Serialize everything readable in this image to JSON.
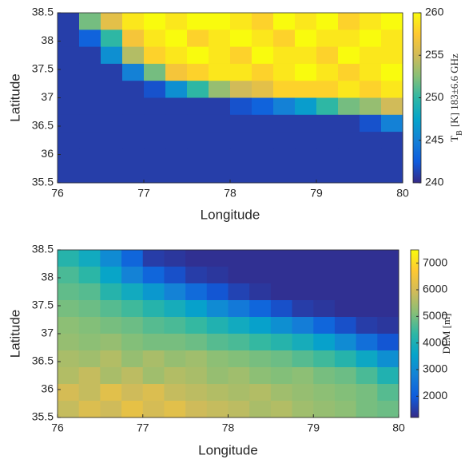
{
  "chart_data": [
    {
      "type": "heatmap",
      "colormap": "parula",
      "xlabel": "Longitude",
      "ylabel": "Latitude",
      "colorbar_label": "T",
      "colorbar_label_subscript": "B",
      "colorbar_label_rest": "[K] 183±6.6 GHz",
      "xlim": [
        76,
        80
      ],
      "xticks": [
        76,
        77,
        78,
        79,
        80
      ],
      "ylim": [
        35.5,
        38.5
      ],
      "yticks": [
        35.5,
        36,
        36.5,
        37,
        37.5,
        38,
        38.5
      ],
      "clim": [
        240,
        260
      ],
      "cticks": [
        240,
        245,
        250,
        255,
        260
      ],
      "values": [
        [
          241,
          252,
          256,
          259,
          260,
          259,
          260,
          260,
          259,
          258,
          260,
          259,
          260,
          258,
          259,
          260
        ],
        [
          241,
          243,
          250,
          257,
          259,
          260,
          258,
          259,
          260,
          259,
          258,
          260,
          259,
          259,
          260,
          259
        ],
        [
          241,
          241,
          246,
          254,
          258,
          259,
          260,
          259,
          258,
          260,
          259,
          259,
          258,
          260,
          259,
          259
        ],
        [
          241,
          241,
          241,
          245,
          252,
          257,
          258,
          259,
          259,
          258,
          259,
          260,
          259,
          258,
          259,
          260
        ],
        [
          241,
          241,
          241,
          241,
          242,
          246,
          250,
          253,
          255,
          256,
          258,
          258,
          258,
          259,
          258,
          259
        ],
        [
          241,
          241,
          241,
          241,
          241,
          241,
          241,
          241,
          242,
          243,
          245,
          247,
          250,
          252,
          253,
          255
        ],
        [
          241,
          241,
          241,
          241,
          241,
          241,
          241,
          241,
          241,
          241,
          241,
          241,
          241,
          241,
          242,
          245
        ],
        [
          241,
          241,
          241,
          241,
          241,
          241,
          241,
          241,
          241,
          241,
          241,
          241,
          241,
          241,
          241,
          241
        ],
        [
          241,
          241,
          241,
          241,
          241,
          241,
          241,
          241,
          241,
          241,
          241,
          241,
          241,
          241,
          241,
          241
        ],
        [
          241,
          241,
          241,
          241,
          241,
          241,
          241,
          241,
          241,
          241,
          241,
          241,
          241,
          241,
          241,
          241
        ]
      ]
    },
    {
      "type": "heatmap",
      "colormap": "parula",
      "xlabel": "Longitude",
      "ylabel": "Latitude",
      "colorbar_label": "DEM [m]",
      "xlim": [
        76,
        80
      ],
      "xticks": [
        76,
        77,
        78,
        79,
        80
      ],
      "ylim": [
        35.5,
        38.5
      ],
      "yticks": [
        35.5,
        36,
        36.5,
        37,
        37.5,
        38,
        38.5
      ],
      "clim": [
        1200,
        7500
      ],
      "cticks": [
        2000,
        3000,
        4000,
        5000,
        6000,
        7000
      ],
      "values": [
        [
          4200,
          3800,
          3000,
          2200,
          1500,
          1400,
          1300,
          1300,
          1300,
          1300,
          1300,
          1300,
          1300,
          1300,
          1300,
          1300
        ],
        [
          4600,
          4300,
          3600,
          2800,
          2200,
          1800,
          1500,
          1400,
          1300,
          1300,
          1300,
          1300,
          1300,
          1300,
          1300,
          1300
        ],
        [
          4800,
          4700,
          4200,
          3800,
          3300,
          2800,
          2300,
          1900,
          1600,
          1400,
          1300,
          1300,
          1300,
          1300,
          1300,
          1300
        ],
        [
          5000,
          4900,
          4700,
          4500,
          4200,
          3900,
          3500,
          3000,
          2600,
          2200,
          1800,
          1500,
          1400,
          1300,
          1300,
          1300
        ],
        [
          5200,
          5100,
          5000,
          4900,
          4700,
          4600,
          4400,
          4100,
          3800,
          3500,
          3100,
          2700,
          2200,
          1800,
          1500,
          1400
        ],
        [
          5300,
          5200,
          5300,
          5100,
          5000,
          5000,
          4900,
          4700,
          4600,
          4400,
          4200,
          3900,
          3500,
          3000,
          2400,
          1900
        ],
        [
          5500,
          5400,
          5600,
          5300,
          5500,
          5300,
          5400,
          5200,
          5100,
          5000,
          4900,
          4700,
          4500,
          4200,
          3700,
          3100
        ],
        [
          5600,
          5800,
          5500,
          5700,
          5400,
          5600,
          5500,
          5300,
          5400,
          5200,
          5100,
          5200,
          5000,
          4900,
          4600,
          4100
        ],
        [
          6000,
          5800,
          6200,
          5900,
          6100,
          5800,
          5700,
          5600,
          5500,
          5600,
          5400,
          5300,
          5200,
          5100,
          5000,
          4700
        ],
        [
          5800,
          6100,
          5900,
          6300,
          6000,
          6200,
          5900,
          5800,
          5700,
          5500,
          5600,
          5400,
          5300,
          5200,
          5000,
          4900
        ]
      ]
    }
  ]
}
